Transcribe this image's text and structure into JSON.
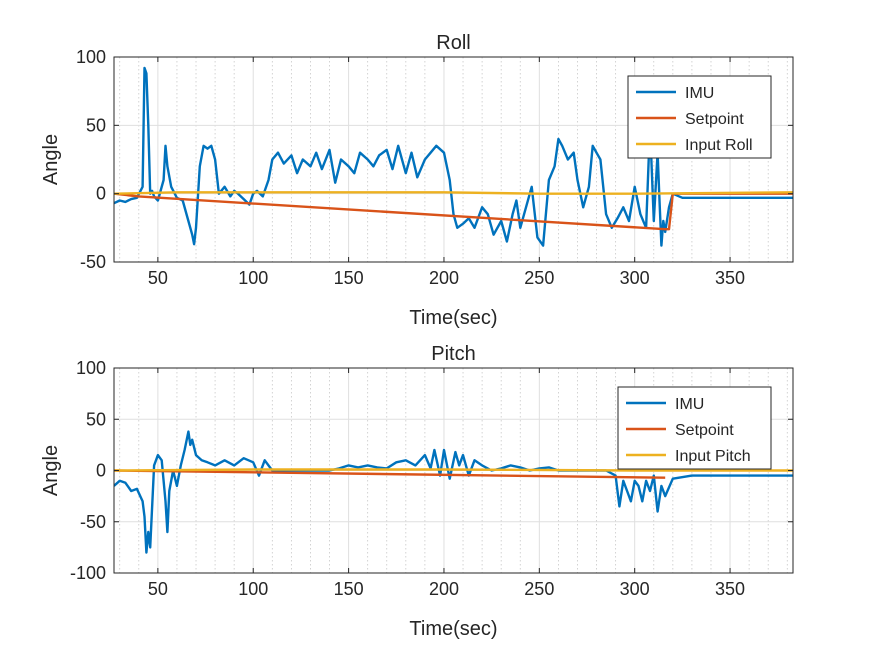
{
  "chart_data": [
    {
      "type": "line",
      "title": "Roll",
      "xlabel": "Time(sec)",
      "ylabel": "Angle",
      "xlim": [
        27,
        383
      ],
      "ylim": [
        -50,
        100
      ],
      "xticks": [
        50,
        100,
        150,
        200,
        250,
        300,
        350
      ],
      "yticks": [
        -50,
        0,
        50,
        100
      ],
      "minor_grid_x": true,
      "legend": "top-right",
      "series": [
        {
          "name": "IMU",
          "color": "#0072BD",
          "x": [
            27,
            30,
            33,
            36,
            39,
            42,
            43,
            44,
            45,
            46,
            47,
            48,
            50,
            53,
            54,
            55,
            57,
            60,
            63,
            66,
            68,
            69,
            70,
            72,
            74,
            76,
            78,
            80,
            82,
            85,
            88,
            90,
            92,
            95,
            98,
            100,
            102,
            105,
            108,
            110,
            113,
            116,
            120,
            123,
            126,
            130,
            133,
            136,
            140,
            143,
            146,
            150,
            153,
            156,
            160,
            163,
            166,
            170,
            173,
            176,
            180,
            183,
            186,
            190,
            193,
            196,
            200,
            203,
            205,
            207,
            210,
            213,
            216,
            220,
            223,
            226,
            230,
            233,
            236,
            238,
            240,
            243,
            246,
            249,
            252,
            255,
            258,
            260,
            262,
            265,
            268,
            270,
            273,
            276,
            278,
            280,
            282,
            285,
            288,
            291,
            294,
            297,
            300,
            303,
            306,
            308,
            310,
            312,
            313,
            314,
            315,
            316,
            318,
            320,
            325,
            330,
            340,
            350,
            360,
            370,
            383
          ],
          "y": [
            -7,
            -5,
            -6,
            -4,
            -3,
            5,
            92,
            88,
            50,
            0,
            2,
            -2,
            -5,
            10,
            35,
            20,
            5,
            -3,
            -5,
            -20,
            -30,
            -37,
            -25,
            20,
            35,
            33,
            35,
            25,
            0,
            5,
            -2,
            2,
            0,
            -4,
            -8,
            0,
            2,
            -2,
            10,
            25,
            30,
            22,
            28,
            15,
            25,
            20,
            30,
            18,
            32,
            8,
            25,
            20,
            15,
            30,
            25,
            20,
            28,
            32,
            18,
            35,
            15,
            30,
            12,
            25,
            30,
            35,
            30,
            10,
            -15,
            -25,
            -22,
            -18,
            -25,
            -10,
            -15,
            -30,
            -20,
            -35,
            -15,
            -5,
            -25,
            -10,
            5,
            -32,
            -38,
            10,
            20,
            40,
            35,
            25,
            30,
            10,
            -10,
            5,
            35,
            30,
            25,
            -15,
            -25,
            -18,
            -10,
            -20,
            5,
            -15,
            -25,
            50,
            -20,
            30,
            -5,
            -38,
            -20,
            -28,
            -10,
            0,
            -3,
            -3,
            -3,
            -3,
            -3,
            -3,
            -3
          ]
        },
        {
          "name": "Setpoint",
          "color": "#D95319",
          "x": [
            27,
            40,
            316,
            318,
            320,
            383
          ],
          "y": [
            0,
            -2,
            -26,
            -26,
            0,
            0
          ]
        },
        {
          "name": "Input Roll",
          "color": "#EDB120",
          "x": [
            27,
            60,
            100,
            150,
            200,
            250,
            300,
            383
          ],
          "y": [
            0,
            1,
            1,
            1,
            1,
            0,
            0,
            1
          ]
        }
      ]
    },
    {
      "type": "line",
      "title": "Pitch",
      "xlabel": "Time(sec)",
      "ylabel": "Angle",
      "xlim": [
        27,
        383
      ],
      "ylim": [
        -100,
        100
      ],
      "xticks": [
        50,
        100,
        150,
        200,
        250,
        300,
        350
      ],
      "yticks": [
        -100,
        -50,
        0,
        50,
        100
      ],
      "minor_grid_x": true,
      "legend": "top-right",
      "series": [
        {
          "name": "IMU",
          "color": "#0072BD",
          "x": [
            27,
            30,
            33,
            36,
            39,
            42,
            43,
            44,
            45,
            46,
            48,
            50,
            52,
            54,
            55,
            56,
            58,
            60,
            62,
            64,
            66,
            67,
            68,
            70,
            73,
            76,
            80,
            85,
            90,
            95,
            100,
            103,
            106,
            110,
            115,
            120,
            125,
            130,
            135,
            140,
            145,
            150,
            155,
            160,
            165,
            170,
            175,
            180,
            185,
            190,
            193,
            195,
            198,
            200,
            203,
            206,
            208,
            210,
            213,
            216,
            220,
            225,
            230,
            235,
            240,
            245,
            250,
            255,
            260,
            265,
            270,
            275,
            280,
            285,
            290,
            292,
            294,
            296,
            298,
            300,
            302,
            304,
            306,
            308,
            310,
            312,
            314,
            316,
            320,
            330,
            340,
            350,
            360,
            370,
            383
          ],
          "y": [
            -15,
            -10,
            -12,
            -20,
            -18,
            -30,
            -45,
            -80,
            -60,
            -75,
            5,
            15,
            10,
            -30,
            -60,
            -20,
            0,
            -15,
            5,
            20,
            38,
            25,
            30,
            15,
            10,
            8,
            5,
            10,
            5,
            12,
            8,
            -5,
            10,
            0,
            0,
            0,
            0,
            0,
            0,
            0,
            2,
            5,
            3,
            5,
            3,
            2,
            8,
            10,
            5,
            15,
            2,
            20,
            -5,
            20,
            -8,
            18,
            5,
            15,
            -5,
            10,
            5,
            0,
            2,
            5,
            3,
            0,
            2,
            3,
            0,
            0,
            0,
            0,
            0,
            0,
            -5,
            -35,
            -10,
            -20,
            -30,
            -10,
            -15,
            -30,
            -10,
            -20,
            -5,
            -40,
            -15,
            -25,
            -8,
            -5,
            -5,
            -5,
            -5,
            -5,
            -5
          ]
        },
        {
          "name": "Setpoint",
          "color": "#D95319",
          "x": [
            27,
            316
          ],
          "y": [
            0,
            -7
          ]
        },
        {
          "name": "Input Pitch",
          "color": "#EDB120",
          "x": [
            27,
            100,
            200,
            300,
            383
          ],
          "y": [
            0,
            1,
            1,
            0,
            0
          ]
        }
      ]
    }
  ]
}
